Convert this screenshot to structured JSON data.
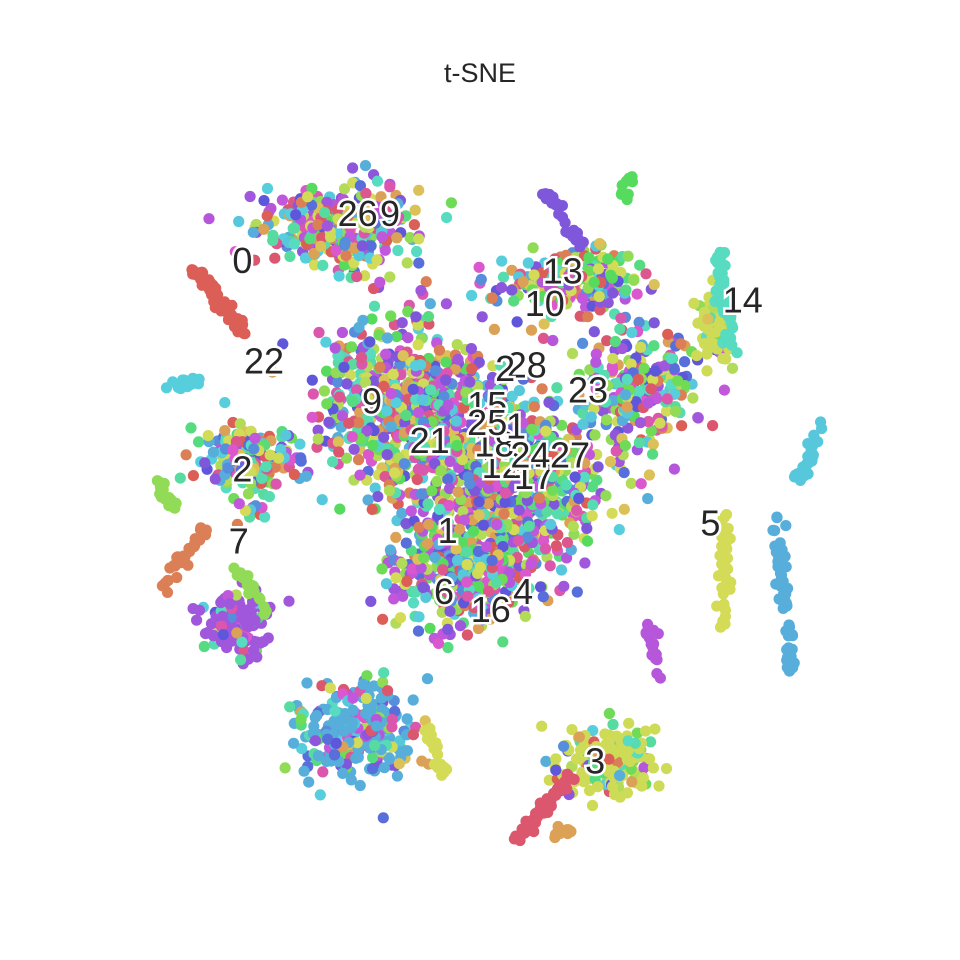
{
  "chart_data": {
    "type": "scatter",
    "title": "t-SNE",
    "xlabel": "",
    "ylabel": "",
    "grid": false,
    "legend": "none",
    "axes_visible": false,
    "xlim": [
      -100,
      100
    ],
    "ylim": [
      -100,
      100
    ],
    "palette": [
      "#db5f57",
      "#db7f57",
      "#dba157",
      "#dbc157",
      "#cedb57",
      "#b2db57",
      "#91db57",
      "#6fdb57",
      "#57db5f",
      "#57db80",
      "#57dba1",
      "#57dbc1",
      "#57cedb",
      "#57aedb",
      "#578edb",
      "#576edb",
      "#5f57db",
      "#7f57db",
      "#a157db",
      "#c157db",
      "#db57ce",
      "#db57ae",
      "#db578e",
      "#db576e",
      "#d4db57",
      "#57c8db",
      "#b657db",
      "#57dbb0",
      "#8e57db"
    ],
    "cluster_labels": [
      {
        "label": "0",
        "x": -66,
        "y": 61,
        "color": "#db5f57"
      },
      {
        "label": "1",
        "x": -9,
        "y": -14,
        "color": "#db7f57"
      },
      {
        "label": "2",
        "x": -66,
        "y": 3,
        "color": "#dba157"
      },
      {
        "label": "3",
        "x": 32,
        "y": -78,
        "color": "#db576e"
      },
      {
        "label": "4",
        "x": 12,
        "y": -31,
        "color": "#cedb57"
      },
      {
        "label": "5",
        "x": 64,
        "y": -12,
        "color": "#57aedb"
      },
      {
        "label": "6",
        "x": -10,
        "y": -31,
        "color": "#db7f57"
      },
      {
        "label": "7",
        "x": -67,
        "y": -17,
        "color": "#91db57"
      },
      {
        "label": "9",
        "x": -25,
        "y": 74,
        "color": "#576edb"
      },
      {
        "label": "9",
        "x": -30,
        "y": 22,
        "color": "#7f57db"
      },
      {
        "label": "10",
        "x": 18,
        "y": 49,
        "color": "#57db5f"
      },
      {
        "label": "12",
        "x": 6,
        "y": 4,
        "color": "#578edb"
      },
      {
        "label": "13",
        "x": 23,
        "y": 58,
        "color": "#57dbc1"
      },
      {
        "label": "14",
        "x": 73,
        "y": 50,
        "color": "#57dbc1"
      },
      {
        "label": "15",
        "x": 2,
        "y": 21,
        "color": "#db57ae"
      },
      {
        "label": "16",
        "x": 3,
        "y": -36,
        "color": "#6fdb57"
      },
      {
        "label": "17",
        "x": 15,
        "y": 1,
        "color": "#576edb"
      },
      {
        "label": "18",
        "x": 4,
        "y": 10,
        "color": "#a157db"
      },
      {
        "label": "21",
        "x": -14,
        "y": 11,
        "color": "#7f57db"
      },
      {
        "label": "22",
        "x": -60,
        "y": 33,
        "color": "#57dbc1"
      },
      {
        "label": "23",
        "x": 30,
        "y": 25,
        "color": "#db578e"
      },
      {
        "label": "24",
        "x": 14,
        "y": 7,
        "color": "#c157db"
      },
      {
        "label": "25",
        "x": 2,
        "y": 16,
        "color": "#db57ce"
      },
      {
        "label": "26",
        "x": -34,
        "y": 74,
        "color": "#db5f57"
      },
      {
        "label": "27",
        "x": 25,
        "y": 7,
        "color": "#db57ae"
      },
      {
        "label": "28",
        "x": 13,
        "y": 32,
        "color": "#57db80"
      },
      {
        "label": "2",
        "x": 7,
        "y": 31,
        "color": "#57dba1"
      },
      {
        "label": "1",
        "x": 10,
        "y": 15,
        "color": "#db7f57"
      }
    ]
  }
}
